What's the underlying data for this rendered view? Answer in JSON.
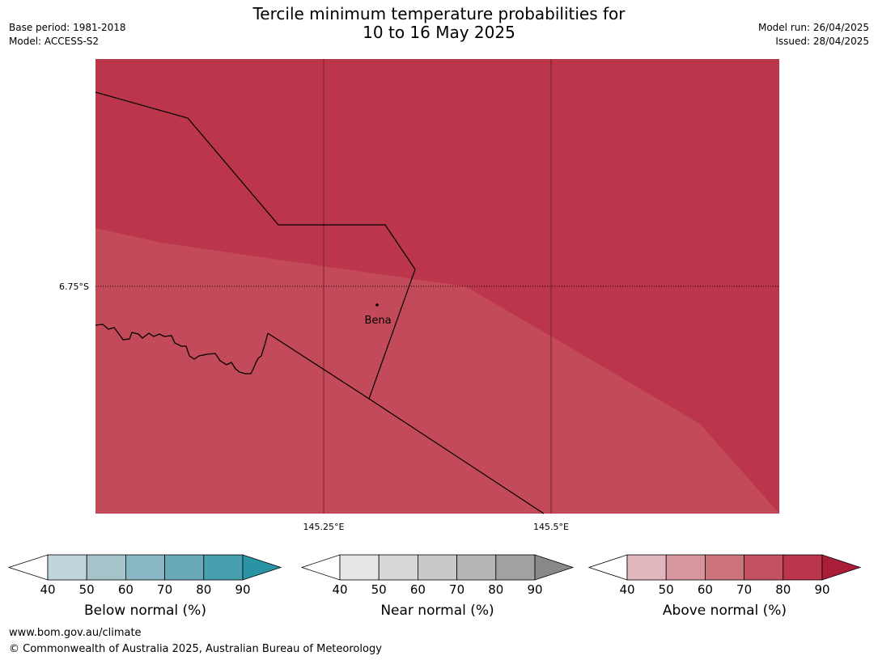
{
  "title_line1": "Tercile minimum temperature probabilities for",
  "title_line2": "10 to 16 May 2025",
  "meta_left": [
    "Base period: 1981-2018",
    "Model: ACCESS-S2"
  ],
  "meta_right": [
    "Model run: 26/04/2025",
    "Issued: 28/04/2025"
  ],
  "map": {
    "lat_label": "6.75°S",
    "lon_labels": [
      "145.25°E",
      "145.5°E"
    ],
    "place_label": "Bena",
    "colors": {
      "above_80_90": "#bb354b",
      "above_70_80": "#c34a58"
    }
  },
  "colorbars": [
    {
      "label": "Below normal (%)",
      "ticks": [
        "40",
        "50",
        "60",
        "70",
        "80",
        "90"
      ],
      "colors": [
        "#c0d5db",
        "#a4c4ca",
        "#89b6c3",
        "#6aaab8",
        "#47a0ae",
        "#2b93a6"
      ]
    },
    {
      "label": "Near normal (%)",
      "ticks": [
        "40",
        "50",
        "60",
        "70",
        "80",
        "90"
      ],
      "colors": [
        "#e6e6e6",
        "#d8d8d8",
        "#c9c9c9",
        "#b5b5b5",
        "#a1a1a1",
        "#888888"
      ]
    },
    {
      "label": "Above normal (%)",
      "ticks": [
        "40",
        "50",
        "60",
        "70",
        "80",
        "90"
      ],
      "colors": [
        "#e1b6bc",
        "#d7959d",
        "#cd737c",
        "#c4515f",
        "#bb354b",
        "#a91d38"
      ]
    }
  ],
  "footer": [
    "www.bom.gov.au/climate",
    "© Commonwealth of Australia 2025, Australian Bureau of Meteorology"
  ]
}
